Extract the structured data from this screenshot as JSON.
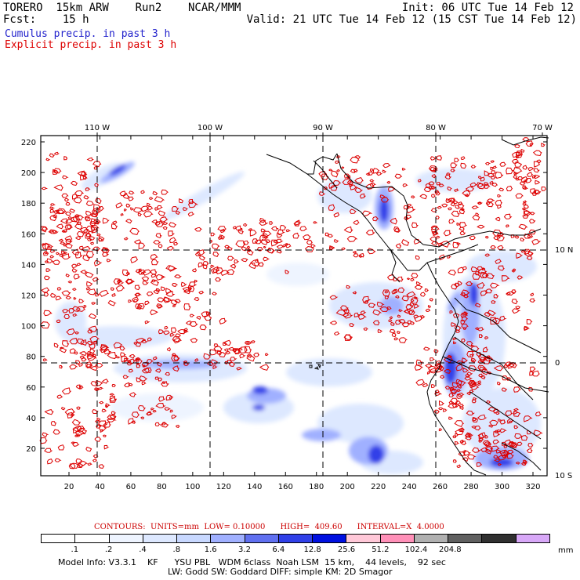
{
  "header": {
    "line1_left": "TORERO  15km ARW    Run2    NCAR/MMM",
    "line1_right": "Init: 06 UTC Tue 14 Feb 12",
    "line2_left": "Fcst:    15 h",
    "line2_right": "Valid: 21 UTC Tue 14 Feb 12 (15 CST Tue 14 Feb 12)"
  },
  "legend": {
    "cumulus": "Cumulus precip. in past 3 h",
    "explicit": "Explicit precip. in past 3 h",
    "cumulus_color": "#2222cc",
    "explicit_color": "#dd0000"
  },
  "map": {
    "top_lon_labels": [
      "110 W",
      "100 W",
      "90 W",
      "80 W",
      "70 W"
    ],
    "left_y_ticks": [
      "220",
      "200",
      "180",
      "160",
      "140",
      "120",
      "100",
      "80",
      "60",
      "40",
      "20"
    ],
    "bottom_x_ticks": [
      "20",
      "40",
      "60",
      "80",
      "100",
      "120",
      "140",
      "160",
      "180",
      "200",
      "220",
      "240",
      "260",
      "280",
      "300",
      "320"
    ],
    "right_lat_labels": [
      "10 N",
      "0",
      "10 S"
    ],
    "layers": [
      "coastlines",
      "country-borders",
      "lat-lon-grid",
      "cumulus-precip-shading",
      "explicit-precip-contours"
    ]
  },
  "contours_line": "CONTOURS:  UNITS=mm  LOW= 0.10000      HIGH=  409.60      INTERVAL=X  4.0000",
  "colorbar": {
    "labels": [
      ".1",
      ".2",
      ".4",
      ".8",
      "1.6",
      "3.2",
      "6.4",
      "12.8",
      "25.6",
      "51.2",
      "102.4",
      "204.8"
    ],
    "unit": "mm",
    "colors": [
      "#ffffff",
      "#ffffff",
      "#eef4ff",
      "#dde8ff",
      "#c8d8ff",
      "#a0b0ff",
      "#6070f0",
      "#3040e8",
      "#0010e0",
      "#ffc8d8",
      "#ff90b8",
      "#b0b0b0",
      "#606060",
      "#303030",
      "#d8a8f8"
    ]
  },
  "model_info": {
    "line1": "Model Info: V3.3.1    KF      YSU PBL   WDM 6class  Noah LSM  15 km,    44 levels,    92 sec",
    "line2": "LW: Godd SW: Goddard DIFF: simple KM: 2D Smagor"
  }
}
